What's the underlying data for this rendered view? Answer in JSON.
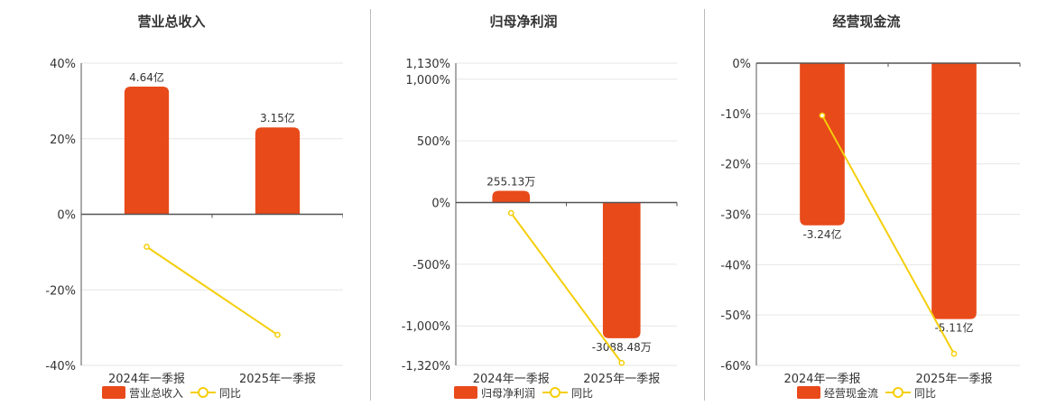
{
  "colors": {
    "bar": "#E84A1A",
    "line": "#F5CE0B",
    "grid": "#e6e6e6",
    "axis": "#555555",
    "text": "#333333"
  },
  "chart_data": [
    {
      "type": "bar",
      "title": "营业总收入",
      "categories": [
        "2024年一季报",
        "2025年一季报"
      ],
      "yticks": [
        "40%",
        "20%",
        "0%",
        "-20%",
        "-40%"
      ],
      "ylim": [
        -40,
        40
      ],
      "series": [
        {
          "name": "营业总收入",
          "type": "bar",
          "values": [
            33.8,
            23.0
          ],
          "labels": [
            "4.64亿",
            "3.15亿"
          ]
        },
        {
          "name": "同比",
          "type": "line",
          "values": [
            -8.6,
            -31.9
          ]
        }
      ],
      "legend": [
        "营业总收入",
        "同比"
      ]
    },
    {
      "type": "bar",
      "title": "归母净利润",
      "categories": [
        "2024年一季报",
        "2025年一季报"
      ],
      "yticks": [
        "1,130%",
        "1,000%",
        "500%",
        "0%",
        "-500%",
        "-1,000%",
        "-1,320%"
      ],
      "ylim": [
        -1320,
        1130
      ],
      "series": [
        {
          "name": "归母净利润",
          "type": "bar",
          "values": [
            95,
            -1100
          ],
          "labels": [
            "255.13万",
            "-3088.48万"
          ]
        },
        {
          "name": "同比",
          "type": "line",
          "values": [
            -85,
            -1300
          ]
        }
      ],
      "legend": [
        "归母净利润",
        "同比"
      ]
    },
    {
      "type": "bar",
      "title": "经营现金流",
      "categories": [
        "2024年一季报",
        "2025年一季报"
      ],
      "yticks": [
        "0%",
        "-10%",
        "-20%",
        "-30%",
        "-40%",
        "-50%",
        "-60%"
      ],
      "ylim": [
        -60,
        0
      ],
      "series": [
        {
          "name": "经营现金流",
          "type": "bar",
          "values": [
            -32.2,
            -50.8
          ],
          "labels": [
            "-3.24亿",
            "-5.11亿"
          ]
        },
        {
          "name": "同比",
          "type": "line",
          "values": [
            -10.4,
            -57.7
          ]
        }
      ],
      "legend": [
        "经营现金流",
        "同比"
      ]
    }
  ]
}
